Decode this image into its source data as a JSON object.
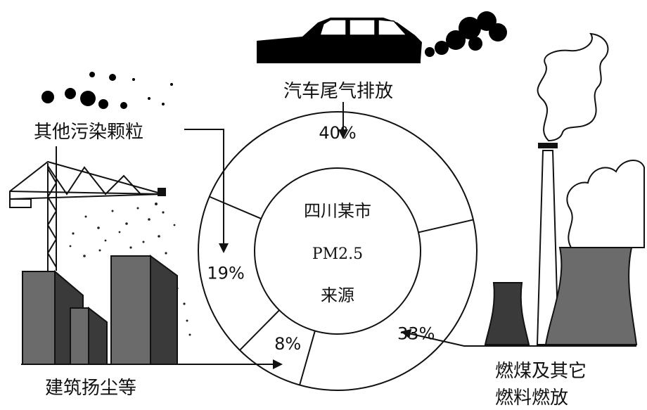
{
  "center": {
    "line1": "四川某市",
    "line2": "PM2.5",
    "line3": "来源"
  },
  "labels": {
    "car": "汽车尾气排放",
    "other": "其他污染颗粒",
    "construction": "建筑扬尘等",
    "coal_line1": "燃煤及其它",
    "coal_line2": "燃料燃放"
  },
  "chart_data": {
    "type": "pie",
    "categories": [
      "汽车尾气排放",
      "燃煤及其它燃料燃放",
      "建筑扬尘等",
      "其他污染颗粒"
    ],
    "values": [
      40,
      33,
      8,
      19
    ],
    "labels": [
      "40%",
      "33%",
      "8%",
      "19%"
    ],
    "donut": true
  },
  "colors": {
    "ink": "#111111",
    "building_dark": "#3a3a3a",
    "building_mid": "#6b6b6b",
    "smoke": "#000000"
  },
  "icons": [
    "car-icon",
    "smoke-puff-icon",
    "crane-icon",
    "buildings-icon",
    "factory-chimney-icon",
    "cooling-tower-icon",
    "dust-particles-icon"
  ]
}
